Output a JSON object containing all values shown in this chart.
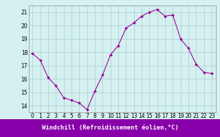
{
  "x": [
    0,
    1,
    2,
    3,
    4,
    5,
    6,
    7,
    8,
    9,
    10,
    11,
    12,
    13,
    14,
    15,
    16,
    17,
    18,
    19,
    20,
    21,
    22,
    23
  ],
  "y": [
    17.9,
    17.4,
    16.1,
    15.5,
    14.6,
    14.4,
    14.2,
    13.7,
    15.1,
    16.3,
    17.8,
    18.5,
    19.8,
    20.2,
    20.7,
    21.0,
    21.2,
    20.7,
    20.8,
    19.0,
    18.3,
    17.1,
    16.5,
    16.4
  ],
  "line_color": "#990099",
  "marker": "D",
  "marker_size": 2.0,
  "bg_color": "#d4f0f0",
  "grid_color": "#aacccc",
  "xlabel_bg": "#8800aa",
  "xlabel_fg": "#ffffff",
  "xlabel": "Windchill (Refroidissement éolien,°C)",
  "ylim": [
    13.5,
    21.5
  ],
  "yticks": [
    14,
    15,
    16,
    17,
    18,
    19,
    20,
    21
  ],
  "xticks": [
    0,
    1,
    2,
    3,
    4,
    5,
    6,
    7,
    8,
    9,
    10,
    11,
    12,
    13,
    14,
    15,
    16,
    17,
    18,
    19,
    20,
    21,
    22,
    23
  ],
  "tick_fontsize": 5.5,
  "xlabel_fontsize": 6.5
}
